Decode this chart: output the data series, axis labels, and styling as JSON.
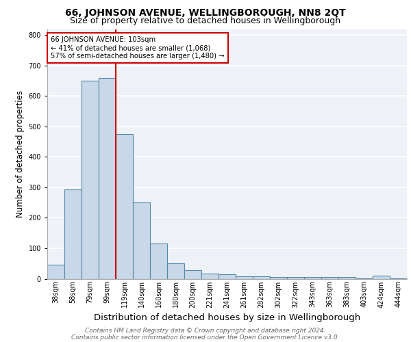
{
  "title": "66, JOHNSON AVENUE, WELLINGBOROUGH, NN8 2QT",
  "subtitle": "Size of property relative to detached houses in Wellingborough",
  "xlabel": "Distribution of detached houses by size in Wellingborough",
  "ylabel": "Number of detached properties",
  "footnote1": "Contains HM Land Registry data © Crown copyright and database right 2024.",
  "footnote2": "Contains public sector information licensed under the Open Government Licence v3.0.",
  "categories": [
    "38sqm",
    "58sqm",
    "79sqm",
    "99sqm",
    "119sqm",
    "140sqm",
    "160sqm",
    "180sqm",
    "200sqm",
    "221sqm",
    "241sqm",
    "261sqm",
    "282sqm",
    "302sqm",
    "322sqm",
    "343sqm",
    "363sqm",
    "383sqm",
    "403sqm",
    "424sqm",
    "444sqm"
  ],
  "values": [
    47,
    293,
    651,
    660,
    475,
    250,
    115,
    50,
    28,
    16,
    15,
    8,
    7,
    6,
    6,
    5,
    5,
    5,
    1,
    9,
    1
  ],
  "bar_color": "#c8d8e8",
  "bar_edge_color": "#5588aa",
  "bar_linewidth": 0.8,
  "vline_color": "#cc0000",
  "annotation_text": "66 JOHNSON AVENUE: 103sqm\n← 41% of detached houses are smaller (1,068)\n57% of semi-detached houses are larger (1,480) →",
  "annotation_box_color": "white",
  "annotation_box_edge_color": "#cc0000",
  "ylim": [
    0,
    820
  ],
  "background_color": "#eef2f7",
  "grid_color": "white",
  "title_fontsize": 10,
  "subtitle_fontsize": 9,
  "xlabel_fontsize": 9.5,
  "ylabel_fontsize": 8.5,
  "tick_fontsize": 7,
  "footnote_fontsize": 6.5
}
